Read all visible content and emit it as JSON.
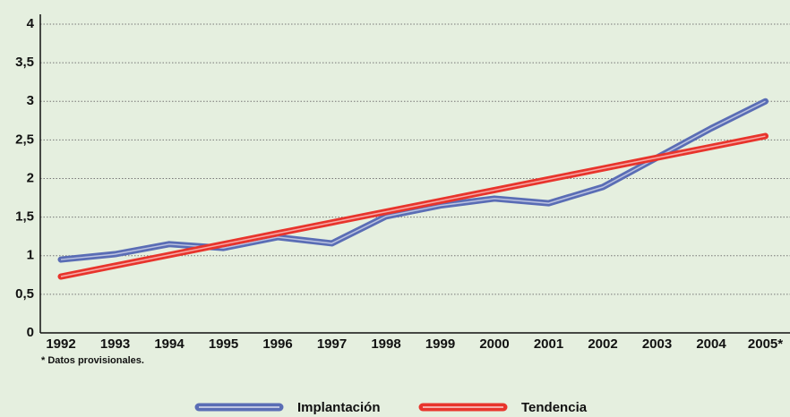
{
  "chart_data": {
    "type": "line",
    "categories": [
      "1992",
      "1993",
      "1994",
      "1995",
      "1996",
      "1997",
      "1998",
      "1999",
      "2000",
      "2001",
      "2002",
      "2003",
      "2004",
      "2005*"
    ],
    "series": [
      {
        "name": "Implantación",
        "color": "#5a6db5",
        "values": [
          0.95,
          1.02,
          1.15,
          1.1,
          1.24,
          1.16,
          1.51,
          1.65,
          1.74,
          1.68,
          1.89,
          2.27,
          2.65,
          3.0
        ]
      },
      {
        "name": "Tendencia",
        "color": "#e8342c",
        "values": [
          0.73,
          0.87,
          1.01,
          1.15,
          1.29,
          1.43,
          1.57,
          1.71,
          1.85,
          1.99,
          2.13,
          2.27,
          2.41,
          2.55
        ]
      }
    ],
    "ylim": [
      0,
      4
    ],
    "yticks": [
      0,
      {
        "value": 0.5,
        "label": "0,5"
      },
      1,
      {
        "value": 1.5,
        "label": "1,5"
      },
      2,
      {
        "value": 2.5,
        "label": "2,5"
      },
      3,
      {
        "value": 3.5,
        "label": "3,5"
      },
      4
    ],
    "grid": true,
    "footnote": "* Datos provisionales."
  }
}
